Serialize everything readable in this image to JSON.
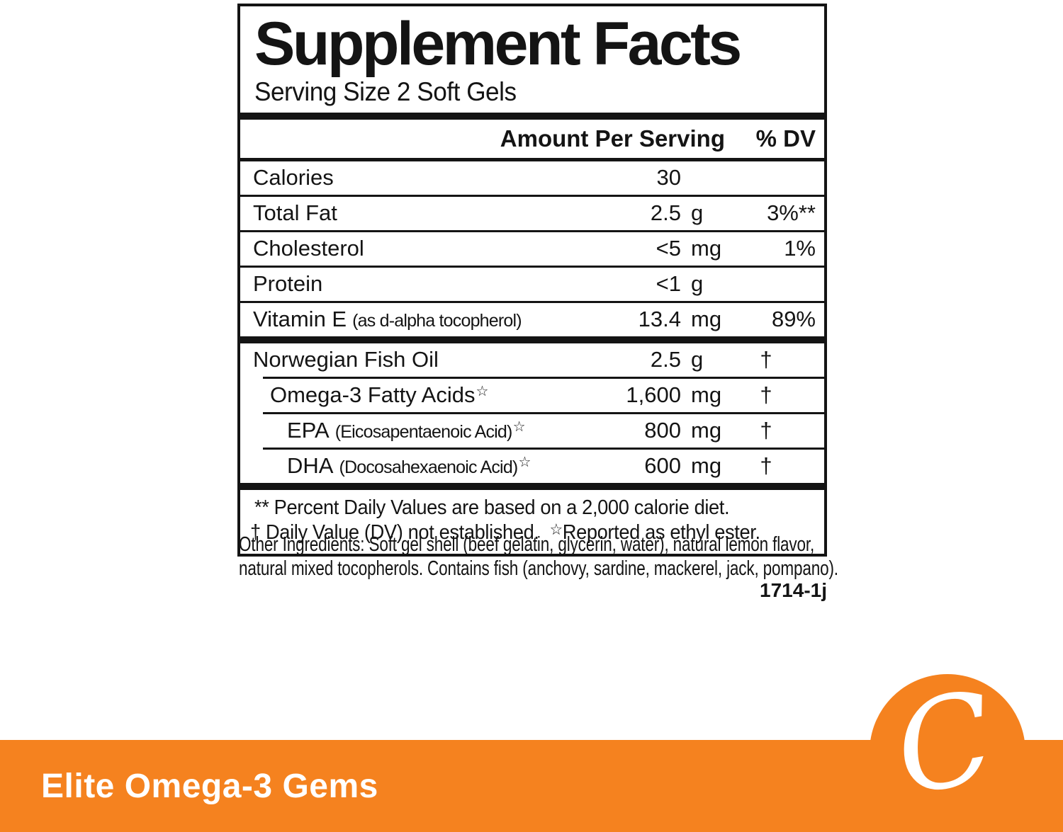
{
  "label": {
    "title": "Supplement Facts",
    "serving_size": "Serving Size 2 Soft Gels",
    "header": {
      "amount": "Amount Per Serving",
      "dv": "% DV"
    },
    "rows": [
      {
        "name": "Calories",
        "detail": "",
        "star": "",
        "amount": "30",
        "unit": "",
        "dv": ""
      },
      {
        "name": "Total Fat",
        "detail": "",
        "star": "",
        "amount": "2.5",
        "unit": "g",
        "dv": "3%**"
      },
      {
        "name": "Cholesterol",
        "detail": "",
        "star": "",
        "amount": "<5",
        "unit": "mg",
        "dv": "1%"
      },
      {
        "name": "Protein",
        "detail": "",
        "star": "",
        "amount": "<1",
        "unit": "g",
        "dv": ""
      },
      {
        "name": "Vitamin E",
        "detail": "(as d-alpha tocopherol)",
        "star": "",
        "amount": "13.4",
        "unit": "mg",
        "dv": "89%"
      },
      {
        "name": "Norwegian Fish Oil",
        "detail": "",
        "star": "",
        "amount": "2.5",
        "unit": "g",
        "dv": "†"
      },
      {
        "name": "Omega-3 Fatty Acids",
        "detail": "",
        "star": "☆",
        "amount": "1,600",
        "unit": "mg",
        "dv": "†"
      },
      {
        "name": "EPA",
        "detail": "(Eicosapentaenoic Acid)",
        "star": "☆",
        "amount": "800",
        "unit": "mg",
        "dv": "†"
      },
      {
        "name": "DHA",
        "detail": "(Docosahexaenoic Acid)",
        "star": "☆",
        "amount": "600",
        "unit": "mg",
        "dv": "†"
      }
    ],
    "footnotes": {
      "line1": "** Percent Daily Values are based on a 2,000 calorie diet.",
      "line2_dagger": "† Daily Value (DV) not established.",
      "line2_star": "☆",
      "line2_rest": "Reported as ethyl ester."
    },
    "other_ingredients_line1": "Other Ingredients: Soft gel shell (beef gelatin, glycerin, water), natural lemon flavor,",
    "other_ingredients_line2": "natural mixed tocopherols. Contains fish (anchovy, sardine, mackerel, jack, pompano).",
    "code": "1714-1j"
  },
  "footer": {
    "product_name": "Elite Omega-3 Gems",
    "brand_initial": "C",
    "accent_color": "#F5821F"
  }
}
